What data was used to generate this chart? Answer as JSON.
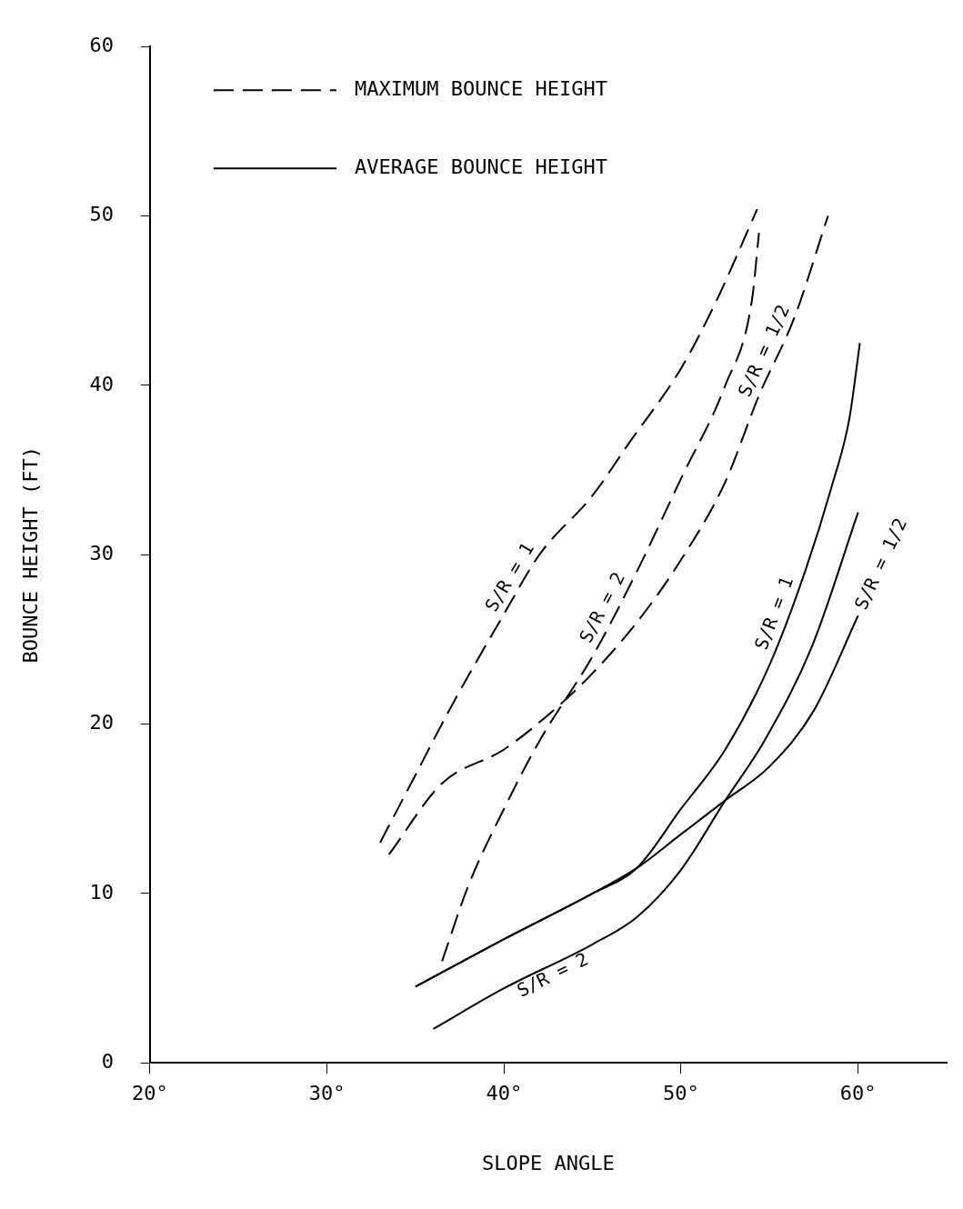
{
  "chart_data": {
    "type": "line",
    "xlabel": "SLOPE ANGLE",
    "ylabel": "BOUNCE HEIGHT (FT)",
    "xlim": [
      20,
      65
    ],
    "xticks": [
      {
        "value": 20,
        "label": "20°"
      },
      {
        "value": 30,
        "label": "30°"
      },
      {
        "value": 40,
        "label": "40°"
      },
      {
        "value": 50,
        "label": "50°"
      },
      {
        "value": 60,
        "label": "60°"
      }
    ],
    "ylim": [
      0,
      60
    ],
    "yticks": [
      0,
      10,
      20,
      30,
      40,
      50,
      60
    ],
    "grid": false,
    "marker": "none",
    "annotations": [
      "MAXIMUM BOUNCE HEIGHT",
      "AVERAGE BOUNCE HEIGHT"
    ],
    "series": [
      {
        "name": "S/R = 1",
        "color": "#000000",
        "line_style": "dashed",
        "x": [
          33,
          35,
          37,
          40,
          42,
          45,
          47,
          50,
          52,
          54.3
        ],
        "values": [
          13,
          17,
          21,
          26.5,
          30,
          33.5,
          36.5,
          41,
          45,
          50.4
        ]
      },
      {
        "name": "S/R = 2",
        "color": "#000000",
        "line_style": "dashed",
        "x": [
          36.5,
          38,
          40,
          42,
          45,
          47.5,
          50,
          52.5,
          54,
          54.4
        ],
        "values": [
          6,
          10.5,
          15,
          19,
          24,
          29,
          34.5,
          40,
          45,
          49
        ]
      },
      {
        "name": "S/R = 1/2",
        "color": "#000000",
        "line_style": "dashed",
        "x": [
          33.5,
          36.5,
          40,
          43,
          45,
          47.5,
          50,
          52.5,
          54.4,
          56.4,
          58.3
        ],
        "values": [
          12.3,
          16.5,
          18.5,
          21,
          23,
          26,
          29.7,
          34.3,
          39.4,
          44,
          50
        ]
      },
      {
        "name": "S/R = 1",
        "color": "#000000",
        "line_style": "solid",
        "x": [
          35,
          40,
          45,
          47.5,
          50,
          52.5,
          55,
          57,
          58.5,
          59.5,
          60.1
        ],
        "values": [
          4.5,
          7.3,
          10,
          11.5,
          15,
          18.5,
          23.5,
          29,
          34,
          38,
          42.5
        ]
      },
      {
        "name": "S/R = 1/2",
        "color": "#000000",
        "line_style": "solid",
        "x": [
          35,
          40,
          45,
          47.5,
          50,
          52.5,
          55,
          57.5,
          60
        ],
        "values": [
          4.5,
          7.3,
          10,
          11.5,
          13.5,
          15.5,
          17.5,
          20.8,
          26.4
        ]
      },
      {
        "name": "S/R = 2",
        "color": "#000000",
        "line_style": "solid",
        "x": [
          36,
          40,
          45,
          47.5,
          50,
          52.5,
          54.7,
          57.4,
          60
        ],
        "values": [
          2,
          4.4,
          7,
          8.6,
          11.4,
          15.5,
          19,
          24.6,
          32.5
        ]
      }
    ]
  }
}
